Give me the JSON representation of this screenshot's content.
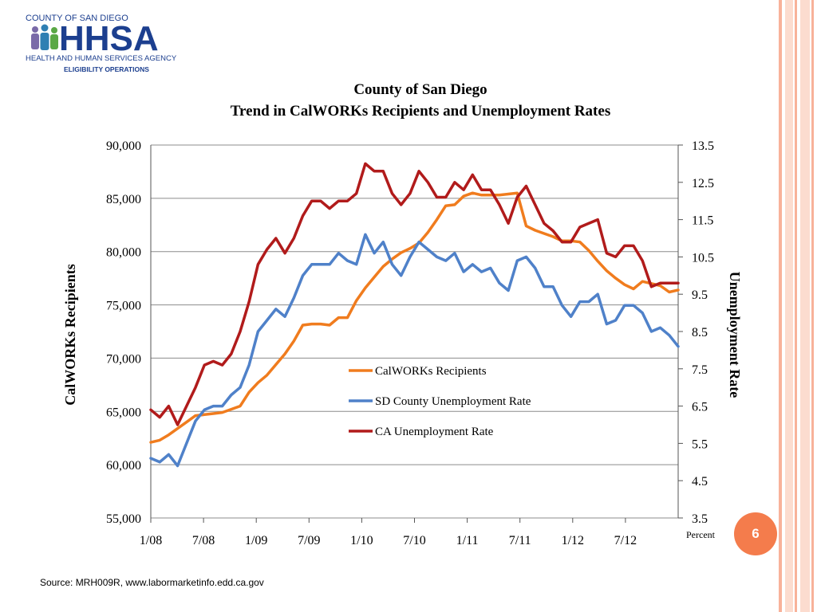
{
  "logo": {
    "county": "COUNTY OF SAN DIEGO",
    "name": "HHSA",
    "agency": "HEALTH AND HUMAN SERVICES AGENCY",
    "division": "ELIGIBILITY OPERATIONS"
  },
  "slide": {
    "page_number": "6",
    "source": "Source: MRH009R, www.labormarketinfo.edd.ca.gov"
  },
  "colors": {
    "calworks": "#f07c1e",
    "sd_unemployment": "#4f81c9",
    "ca_unemployment": "#b11b1b",
    "stripe_outer": "#f8b29a",
    "stripe_inner": "#fcdccf",
    "badge": "#f47c4c"
  },
  "chart_data": {
    "type": "line",
    "title_line1": "County of San Diego",
    "title_line2": "Trend in CalWORKs Recipients and Unemployment Rates",
    "ylabel": "CalWORKs Recipients",
    "y2label": "Unemployment Rate",
    "y2unit": "Percent",
    "ylim": [
      55000,
      90000
    ],
    "y2lim": [
      3.5,
      13.5
    ],
    "yticks": [
      "90,000",
      "85,000",
      "80,000",
      "75,000",
      "70,000",
      "65,000",
      "60,000",
      "55,000"
    ],
    "y2ticks": [
      "13.5",
      "12.5",
      "11.5",
      "10.5",
      "9.5",
      "8.5",
      "7.5",
      "6.5",
      "5.5",
      "4.5",
      "3.5"
    ],
    "xticks": [
      "1/08",
      "7/08",
      "1/09",
      "7/09",
      "1/10",
      "7/10",
      "1/11",
      "7/11",
      "1/12",
      "7/12"
    ],
    "n_points": 60,
    "legend_position": "center-right",
    "series": [
      {
        "name": "CalWORKs Recipients",
        "axis": "left",
        "values": [
          62100,
          62300,
          62800,
          63400,
          64000,
          64600,
          64700,
          64800,
          64900,
          65200,
          65500,
          66800,
          67700,
          68400,
          69400,
          70400,
          71600,
          73100,
          73200,
          73200,
          73100,
          73800,
          73800,
          75400,
          76600,
          77600,
          78600,
          79300,
          79900,
          80300,
          80800,
          81800,
          83000,
          84300,
          84400,
          85200,
          85500,
          85300,
          85300,
          85300,
          85400,
          85500,
          82400,
          82000,
          81700,
          81400,
          81000,
          81000,
          80900,
          80100,
          79100,
          78200,
          77500,
          76900,
          76500,
          77200,
          77000,
          76800,
          76200,
          76400
        ]
      },
      {
        "name": "SD County Unemployment Rate",
        "axis": "right",
        "values": [
          5.1,
          5.0,
          5.2,
          4.9,
          5.5,
          6.1,
          6.4,
          6.5,
          6.5,
          6.8,
          7.0,
          7.6,
          8.5,
          8.8,
          9.1,
          8.9,
          9.4,
          10.0,
          10.3,
          10.3,
          10.3,
          10.6,
          10.4,
          10.3,
          11.1,
          10.6,
          10.9,
          10.3,
          10.0,
          10.5,
          10.9,
          10.7,
          10.5,
          10.4,
          10.6,
          10.1,
          10.3,
          10.1,
          10.2,
          9.8,
          9.6,
          10.4,
          10.5,
          10.2,
          9.7,
          9.7,
          9.2,
          8.9,
          9.3,
          9.3,
          9.5,
          8.7,
          8.8,
          9.2,
          9.2,
          9.0,
          8.5,
          8.6,
          8.4,
          8.1
        ]
      },
      {
        "name": "CA Unemployment Rate",
        "axis": "right",
        "values": [
          6.4,
          6.2,
          6.5,
          6.0,
          6.5,
          7.0,
          7.6,
          7.7,
          7.6,
          7.9,
          8.5,
          9.3,
          10.3,
          10.7,
          11.0,
          10.6,
          11.0,
          11.6,
          12.0,
          12.0,
          11.8,
          12.0,
          12.0,
          12.2,
          13.0,
          12.8,
          12.8,
          12.2,
          11.9,
          12.2,
          12.8,
          12.5,
          12.1,
          12.1,
          12.5,
          12.3,
          12.7,
          12.3,
          12.3,
          11.9,
          11.4,
          12.1,
          12.4,
          11.9,
          11.4,
          11.2,
          10.9,
          10.9,
          11.3,
          11.4,
          11.5,
          10.6,
          10.5,
          10.8,
          10.8,
          10.4,
          9.7,
          9.8,
          9.8,
          9.8
        ]
      }
    ]
  }
}
